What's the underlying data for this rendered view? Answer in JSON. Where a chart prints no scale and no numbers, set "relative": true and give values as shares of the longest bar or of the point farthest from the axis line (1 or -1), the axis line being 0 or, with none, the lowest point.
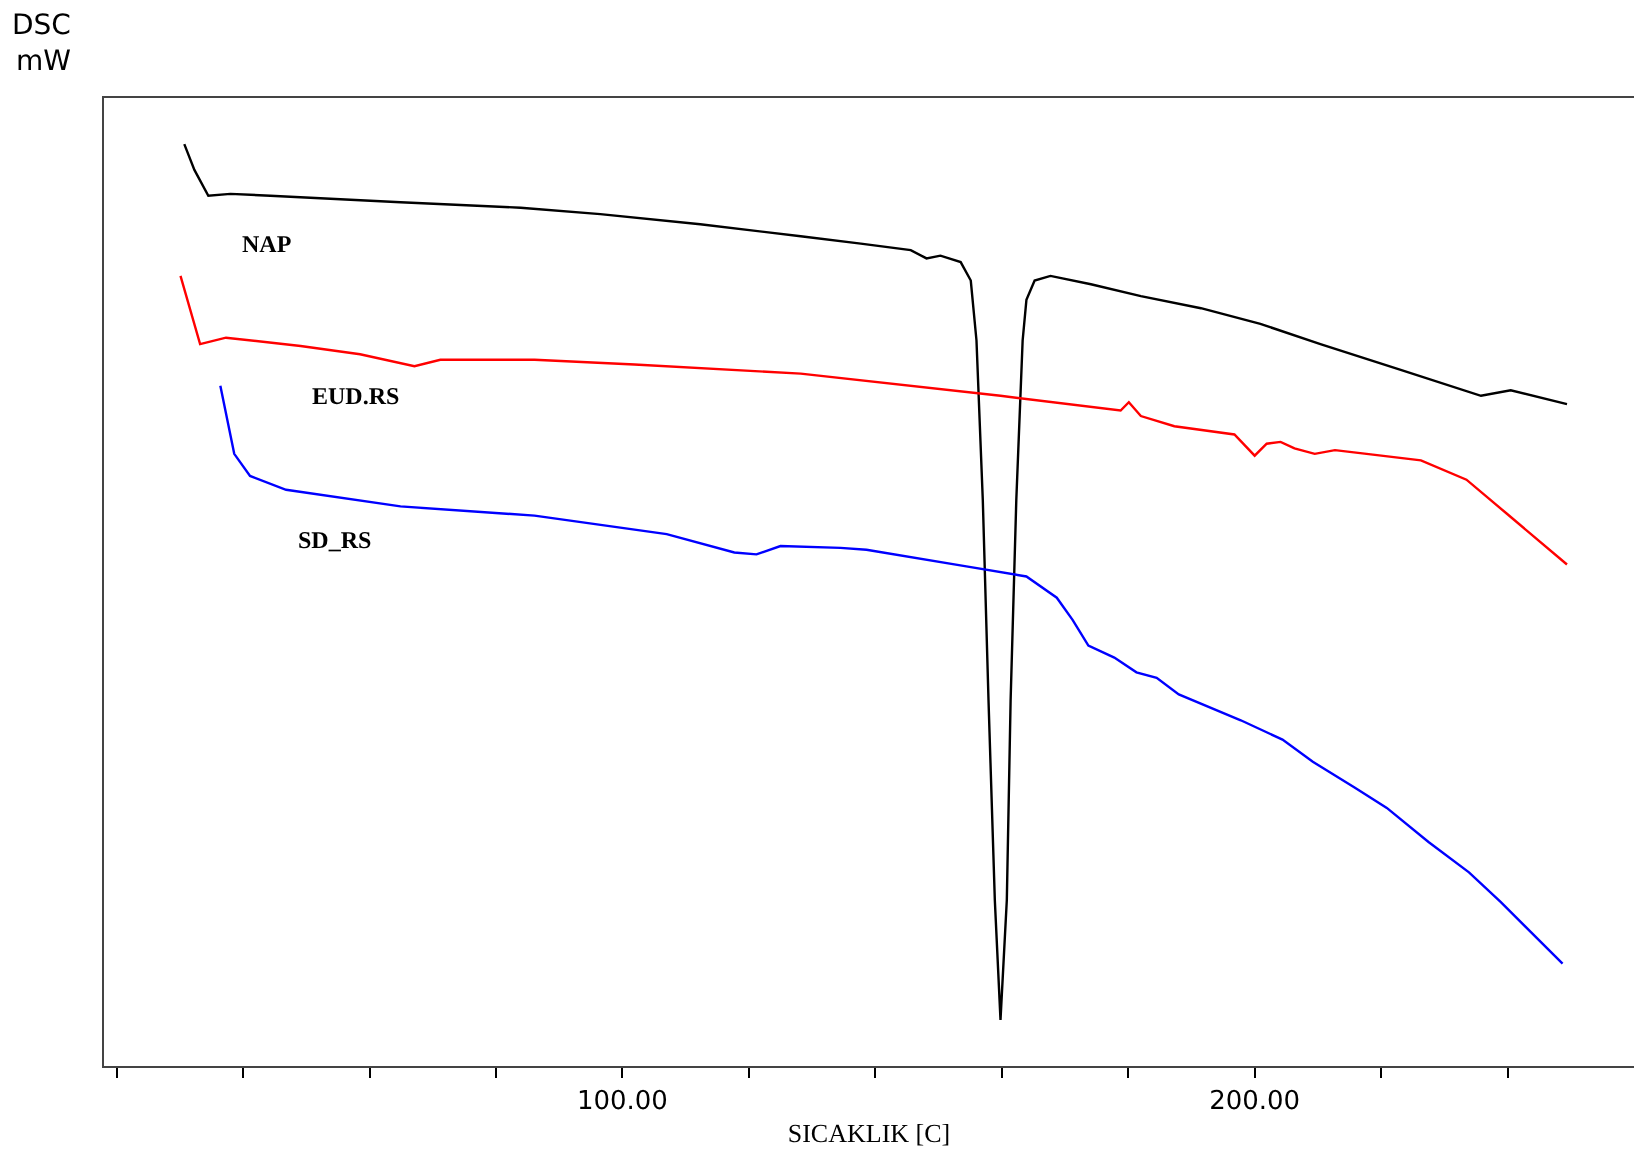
{
  "chart_data": {
    "type": "line",
    "relative": true,
    "ylabel": "DSC\nmW",
    "xlabel": "SICAKLIK [C]",
    "xlim": [
      18,
      260
    ],
    "xticks": [
      {
        "value": 20,
        "label": null
      },
      {
        "value": 40,
        "label": null
      },
      {
        "value": 60,
        "label": null
      },
      {
        "value": 80,
        "label": null
      },
      {
        "value": 100,
        "label": "100.00"
      },
      {
        "value": 120,
        "label": null
      },
      {
        "value": 140,
        "label": null
      },
      {
        "value": 160,
        "label": null
      },
      {
        "value": 180,
        "label": null
      },
      {
        "value": 200,
        "label": "200.00"
      },
      {
        "value": 220,
        "label": null
      },
      {
        "value": 240,
        "label": null
      }
    ],
    "grid": false,
    "legend": false,
    "marker": "none",
    "line_style": "solid",
    "tick_labels": "x",
    "series": [
      {
        "name": "NAP",
        "color": "#000000",
        "x": [
          30.7,
          32.3,
          34.5,
          38.0,
          44.3,
          64.9,
          83.9,
          96.5,
          112.3,
          128.2,
          137.7,
          145.6,
          148.1,
          150.3,
          153.5,
          155.1,
          156.0,
          157.0,
          157.9,
          158.9,
          159.8,
          160.8,
          161.4,
          162.3,
          163.3,
          163.9,
          165.2,
          167.7,
          174.1,
          182.0,
          191.5,
          200.9,
          210.4,
          223.1,
          235.8,
          240.5,
          249.4
        ],
        "values": [
          1.0,
          0.972,
          0.944,
          0.946,
          0.944,
          0.937,
          0.931,
          0.924,
          0.913,
          0.9,
          0.892,
          0.885,
          0.876,
          0.879,
          0.872,
          0.852,
          0.787,
          0.614,
          0.397,
          0.18,
          0.05,
          0.18,
          0.397,
          0.614,
          0.787,
          0.831,
          0.852,
          0.857,
          0.848,
          0.835,
          0.822,
          0.805,
          0.783,
          0.755,
          0.727,
          0.733,
          0.718
        ]
      },
      {
        "name": "EUD.RS",
        "color": "#ff0000",
        "x": [
          30.1,
          33.2,
          37.3,
          49.1,
          58.5,
          67.1,
          71.2,
          86.1,
          101.9,
          128.2,
          159.8,
          178.8,
          180.1,
          182.0,
          187.3,
          196.8,
          200.0,
          201.9,
          204.1,
          206.3,
          209.5,
          212.7,
          217.7,
          226.3,
          233.5,
          239.9,
          249.4
        ],
        "values": [
          0.857,
          0.783,
          0.79,
          0.781,
          0.772,
          0.759,
          0.766,
          0.766,
          0.761,
          0.751,
          0.727,
          0.711,
          0.72,
          0.705,
          0.694,
          0.685,
          0.662,
          0.675,
          0.677,
          0.67,
          0.664,
          0.668,
          0.664,
          0.657,
          0.636,
          0.599,
          0.544
        ]
      },
      {
        "name": "SD_RS",
        "color": "#0000ff",
        "x": [
          36.4,
          38.6,
          41.1,
          46.8,
          64.9,
          86.1,
          107.0,
          117.7,
          121.2,
          125.0,
          134.5,
          138.6,
          154.4,
          163.9,
          168.7,
          171.2,
          173.7,
          177.8,
          181.3,
          184.5,
          188.0,
          197.8,
          204.4,
          209.2,
          215.8,
          220.9,
          227.5,
          233.9,
          238.9,
          248.7
        ],
        "values": [
          0.738,
          0.664,
          0.64,
          0.625,
          0.607,
          0.597,
          0.577,
          0.557,
          0.555,
          0.564,
          0.562,
          0.56,
          0.542,
          0.531,
          0.508,
          0.484,
          0.456,
          0.443,
          0.427,
          0.421,
          0.403,
          0.375,
          0.354,
          0.33,
          0.302,
          0.28,
          0.243,
          0.21,
          0.178,
          0.111
        ]
      }
    ]
  }
}
